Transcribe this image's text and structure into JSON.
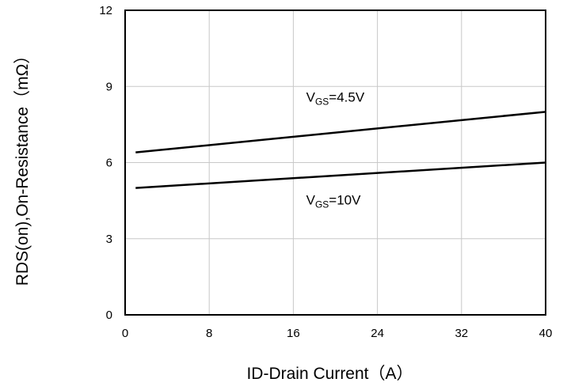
{
  "chart_data": {
    "type": "line",
    "xlabel": "ID-Drain Current（A）",
    "ylabel": "RDS(on),On-Resistance（mΩ）",
    "xlim": [
      0,
      40
    ],
    "ylim": [
      0,
      12
    ],
    "x_ticks": [
      "0",
      "8",
      "16",
      "24",
      "32",
      "40"
    ],
    "y_ticks": [
      "0",
      "3",
      "6",
      "9",
      "12"
    ],
    "grid": true,
    "series": [
      {
        "name": "VGS=4.5V",
        "label_main": "V",
        "label_sub": "GS",
        "label_rest": "=4.5V",
        "x": [
          1,
          40
        ],
        "y": [
          6.4,
          8.0
        ],
        "color": "#000000"
      },
      {
        "name": "VGS=10V",
        "label_main": "V",
        "label_sub": "GS",
        "label_rest": "=10V",
        "x": [
          1,
          40
        ],
        "y": [
          5.0,
          6.0
        ],
        "color": "#000000"
      }
    ]
  }
}
